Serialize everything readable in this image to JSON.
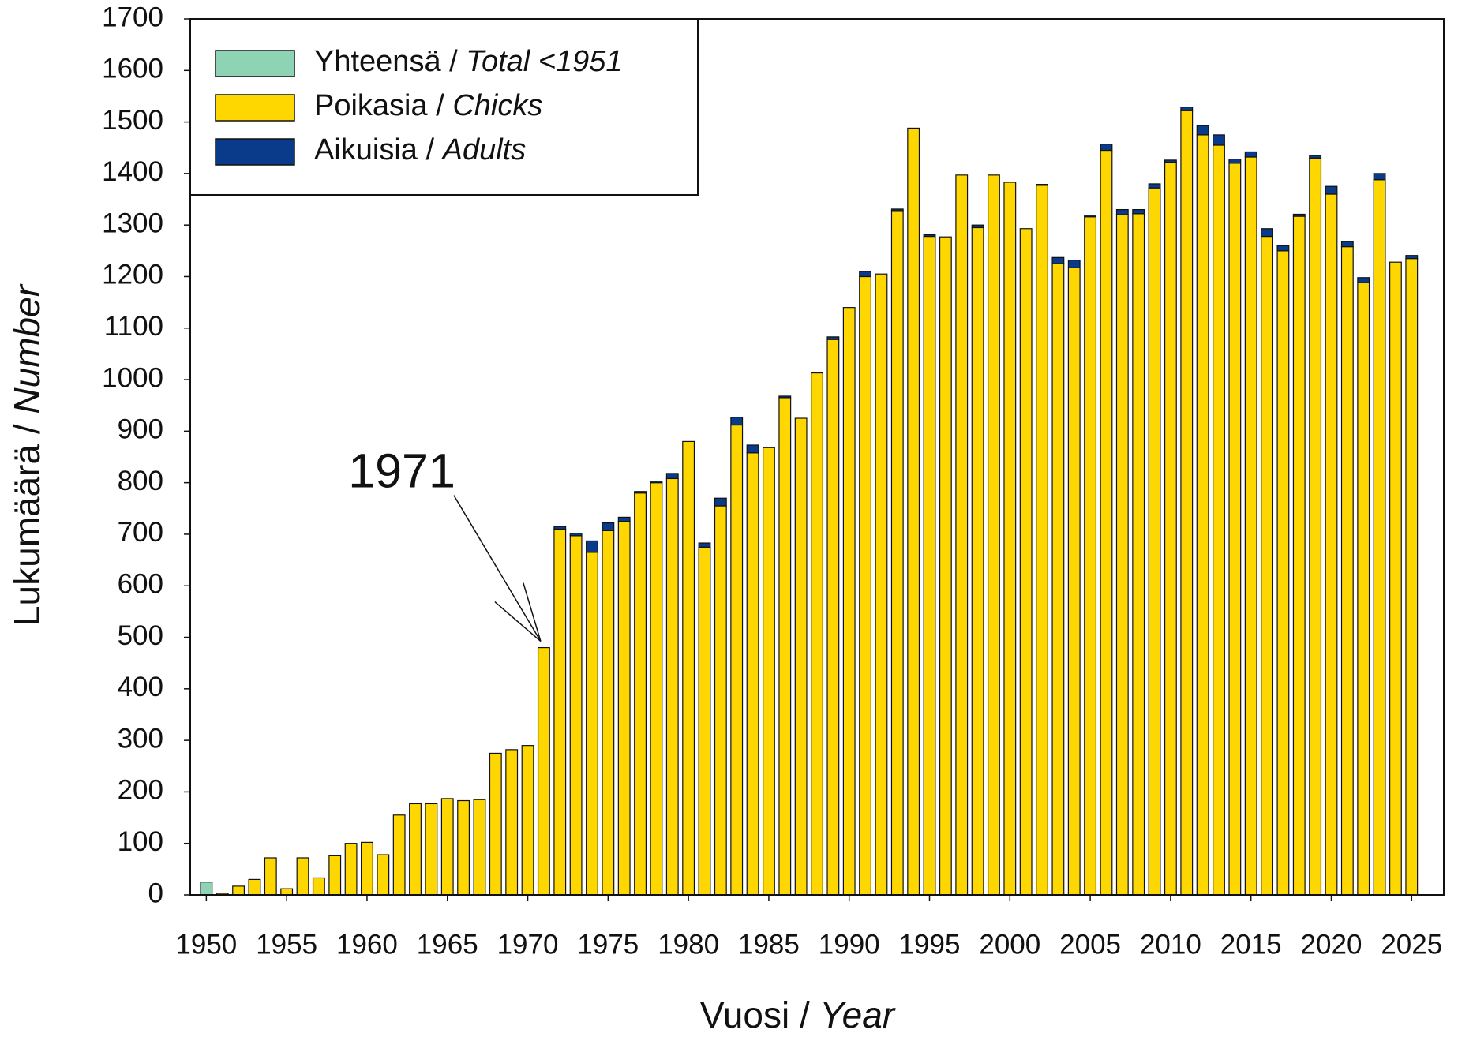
{
  "chart_data": {
    "type": "stacked_bar",
    "xlabel": "Vuosi / Year",
    "ylabel": "Lukumäärä / Number",
    "x": [
      1950,
      1951,
      1952,
      1953,
      1954,
      1955,
      1956,
      1957,
      1958,
      1959,
      1960,
      1961,
      1962,
      1963,
      1964,
      1965,
      1966,
      1967,
      1968,
      1969,
      1970,
      1971,
      1972,
      1973,
      1974,
      1975,
      1976,
      1977,
      1978,
      1979,
      1980,
      1981,
      1982,
      1983,
      1984,
      1985,
      1986,
      1987,
      1988,
      1989,
      1990,
      1991,
      1992,
      1993,
      1994,
      1995,
      1996,
      1997,
      1998,
      1999,
      2000,
      2001,
      2002,
      2003,
      2004,
      2005,
      2006,
      2007,
      2008,
      2009,
      2010,
      2011,
      2012,
      2013,
      2014,
      2015,
      2016,
      2017,
      2018,
      2019,
      2020,
      2021,
      2022,
      2023,
      2024,
      2025
    ],
    "series": [
      {
        "name": "Yhteensä / Total <1951",
        "color": "#8fd3b5",
        "values": [
          25,
          null,
          null,
          null,
          null,
          null,
          null,
          null,
          null,
          null,
          null,
          null,
          null,
          null,
          null,
          null,
          null,
          null,
          null,
          null,
          null,
          null,
          null,
          null,
          null,
          null,
          null,
          null,
          null,
          null,
          null,
          null,
          null,
          null,
          null,
          null,
          null,
          null,
          null,
          null,
          null,
          null,
          null,
          null,
          null,
          null,
          null,
          null,
          null,
          null,
          null,
          null,
          null,
          null,
          null,
          null,
          null,
          null,
          null,
          null,
          null,
          null,
          null,
          null,
          null,
          null,
          null,
          null,
          null,
          null,
          null,
          null,
          null,
          null,
          null,
          null
        ]
      },
      {
        "name": "Poikasia / Chicks",
        "color": "#ffd700",
        "values": [
          null,
          3,
          17,
          30,
          72,
          12,
          72,
          33,
          76,
          100,
          102,
          78,
          155,
          177,
          177,
          187,
          183,
          185,
          275,
          282,
          290,
          480,
          710,
          697,
          665,
          707,
          725,
          780,
          800,
          808,
          880,
          675,
          755,
          912,
          858,
          868,
          965,
          925,
          1013,
          1078,
          1140,
          1200,
          1205,
          1328,
          1488,
          1278,
          1277,
          1397,
          1295,
          1397,
          1383,
          1293,
          1377,
          1225,
          1217,
          1316,
          1445,
          1320,
          1322,
          1372,
          1422,
          1522,
          1475,
          1455,
          1420,
          1432,
          1278,
          1250,
          1317,
          1430,
          1360,
          1258,
          1188,
          1388,
          1228,
          1235
        ]
      },
      {
        "name": "Aikuisia / Adults",
        "color": "#0a3a8a",
        "values": [
          null,
          0,
          0,
          0,
          0,
          0,
          0,
          0,
          0,
          0,
          0,
          0,
          0,
          0,
          0,
          0,
          0,
          0,
          0,
          0,
          0,
          0,
          5,
          5,
          22,
          15,
          8,
          3,
          3,
          10,
          0,
          8,
          15,
          15,
          15,
          0,
          3,
          0,
          0,
          5,
          0,
          10,
          0,
          3,
          0,
          3,
          0,
          0,
          5,
          0,
          0,
          0,
          2,
          12,
          15,
          3,
          12,
          10,
          8,
          8,
          4,
          7,
          18,
          20,
          8,
          10,
          15,
          10,
          4,
          5,
          15,
          10,
          10,
          12,
          0,
          6
        ]
      }
    ],
    "xlim": [
      1949,
      2027
    ],
    "xticks": [
      1950,
      1955,
      1960,
      1965,
      1970,
      1975,
      1980,
      1985,
      1990,
      1995,
      2000,
      2005,
      2010,
      2015,
      2020,
      2025
    ],
    "ylim": [
      0,
      1700
    ],
    "yticks": [
      0,
      100,
      200,
      300,
      400,
      500,
      600,
      700,
      800,
      900,
      1000,
      1100,
      1200,
      1300,
      1400,
      1500,
      1600,
      1700
    ],
    "legend": "upper left",
    "annotations": [
      {
        "text": "1971",
        "x": 1971,
        "y": 480
      }
    ]
  }
}
